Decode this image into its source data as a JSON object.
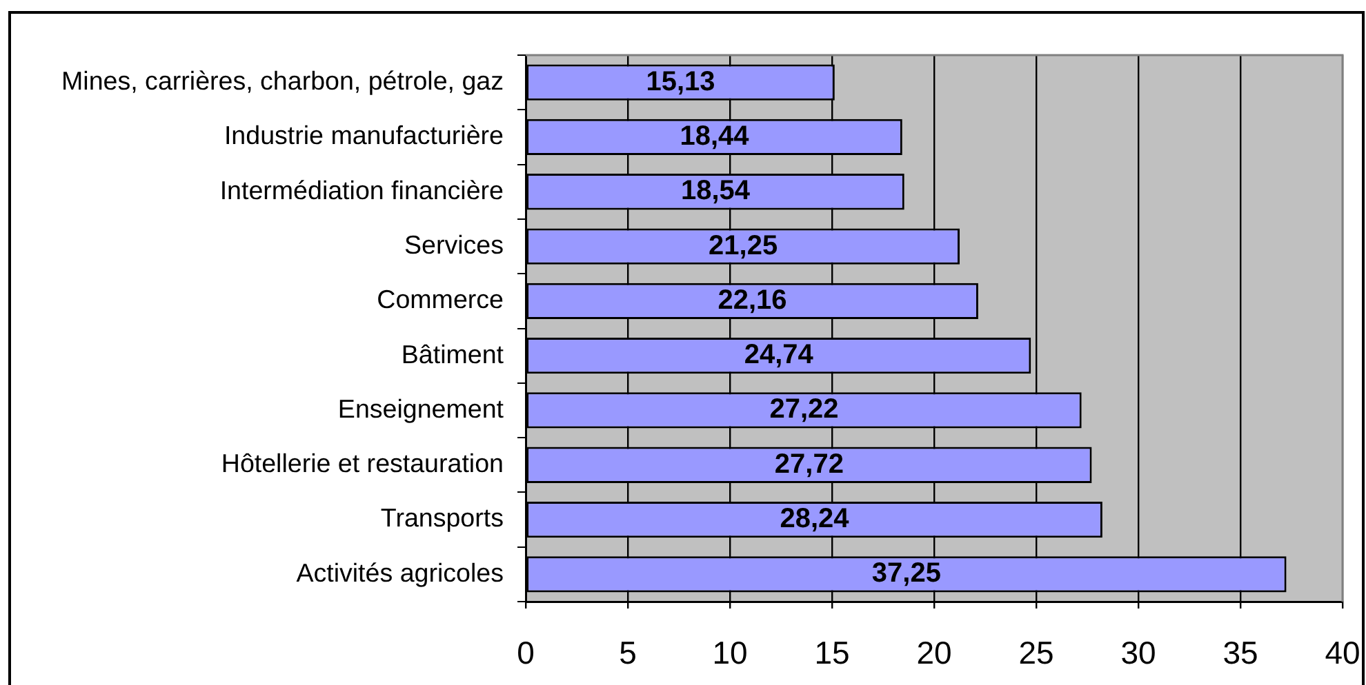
{
  "chart_data": {
    "type": "bar",
    "orientation": "horizontal",
    "categories": [
      "Mines, carrières, charbon, pétrole, gaz",
      "Industrie manufacturière",
      "Intermédiation financière",
      "Services",
      "Commerce",
      "Bâtiment",
      "Enseignement",
      "Hôtellerie et restauration",
      "Transports",
      "Activités agricoles"
    ],
    "values": [
      15.13,
      18.44,
      18.54,
      21.25,
      22.16,
      24.74,
      27.22,
      27.72,
      28.24,
      37.25
    ],
    "value_labels": [
      "15,13",
      "18,44",
      "18,54",
      "21,25",
      "22,16",
      "24,74",
      "27,22",
      "27,72",
      "28,24",
      "37,25"
    ],
    "color": "#9999ff",
    "xlim": [
      0,
      40
    ],
    "xticks": [
      0,
      5,
      10,
      15,
      20,
      25,
      30,
      35,
      40
    ],
    "grid": "x"
  }
}
